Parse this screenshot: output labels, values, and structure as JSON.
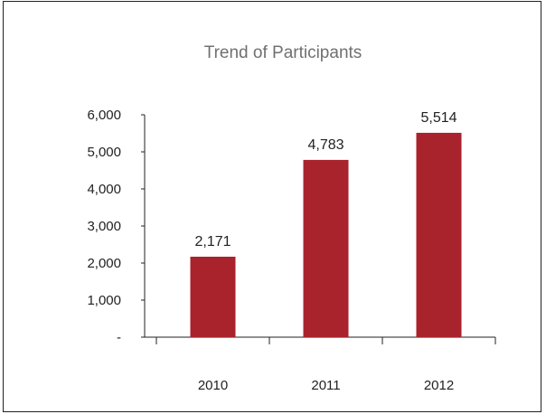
{
  "chart_data": {
    "type": "bar",
    "title": "Trend of Participants",
    "xlabel": "",
    "ylabel": "",
    "categories": [
      "2010",
      "2011",
      "2012"
    ],
    "values": [
      2171,
      4783,
      5514
    ],
    "data_labels": [
      "2,171",
      "4,783",
      "5,514"
    ],
    "ylim": [
      0,
      6000
    ],
    "yticks": [
      0,
      1000,
      2000,
      3000,
      4000,
      5000,
      6000
    ],
    "ytick_labels": [
      "-",
      "1,000",
      "2,000",
      "3,000",
      "4,000",
      "5,000",
      "6,000"
    ],
    "grid": false,
    "legend": "none",
    "bar_color": "#a8232b"
  }
}
